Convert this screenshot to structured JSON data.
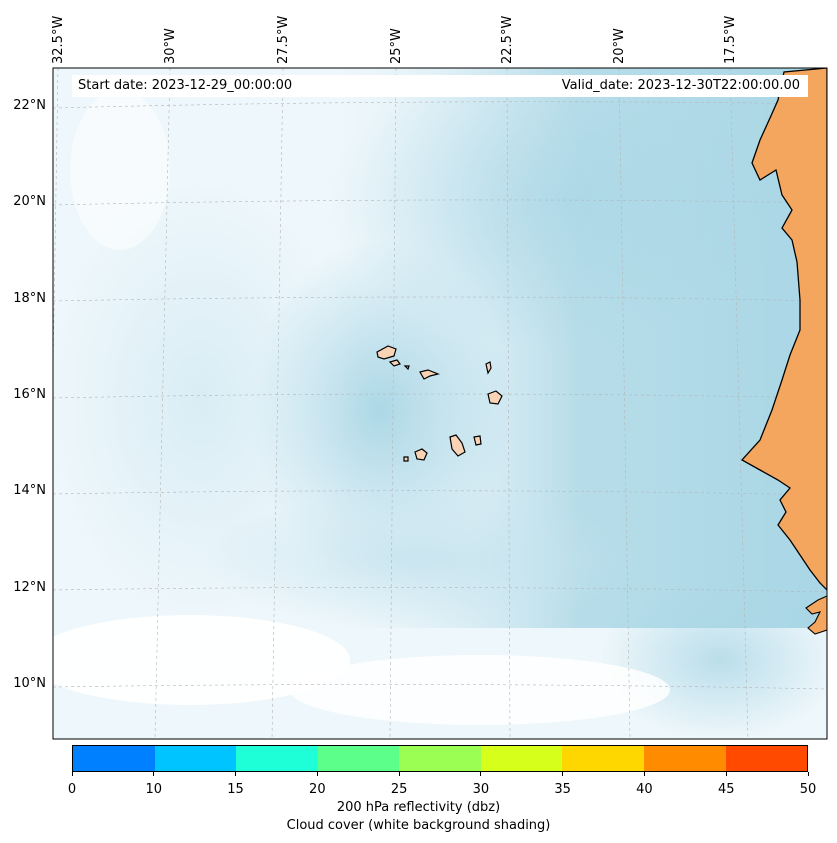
{
  "header": {
    "start_date": "Start date: 2023-12-29_00:00:00",
    "valid_date": "Valid_date: 2023-12-30T22:00:00.00"
  },
  "map": {
    "lon_labels": [
      "32.5°W",
      "30°W",
      "27.5°W",
      "25°W",
      "22.5°W",
      "20°W",
      "17.5°W"
    ],
    "lat_labels": [
      "22°N",
      "20°N",
      "18°N",
      "16°N",
      "14°N",
      "12°N",
      "10°N"
    ],
    "colors": {
      "ocean_cloud": "#a9d6e5",
      "light_cloud": "#e3f1f7",
      "land": "#f4a65e",
      "land_light": "#f8c9a0",
      "island": "#f9d3b5"
    }
  },
  "colorbar": {
    "ticks": [
      "0",
      "10",
      "15",
      "20",
      "25",
      "30",
      "35",
      "40",
      "45",
      "50"
    ],
    "colors": [
      "#0080ff",
      "#00c4ff",
      "#1effd8",
      "#5cff8a",
      "#9aff52",
      "#d6ff1c",
      "#ffd700",
      "#ff8c00",
      "#ff4a00"
    ],
    "label_line1": "200 hPa reflectivity (dbz)",
    "label_line2": "Cloud cover (white background shading)"
  }
}
